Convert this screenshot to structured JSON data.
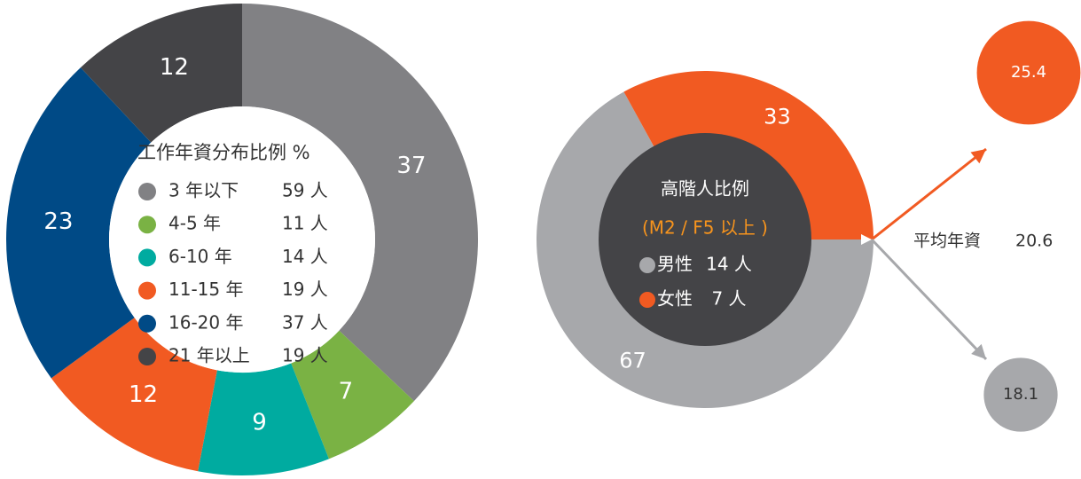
{
  "chart_data": [
    {
      "type": "donut",
      "title": "工作年資分布比例 %",
      "categories": [
        "3 年以下",
        "4-5 年",
        "6-10 年",
        "11-15 年",
        "16-20 年",
        "21 年以上"
      ],
      "counts": [
        "59 人",
        "11 人",
        "14 人",
        "19 人",
        "37 人",
        "19 人"
      ],
      "values": [
        37,
        7,
        9,
        12,
        23,
        12
      ],
      "colors": [
        "#818184",
        "#7ab244",
        "#00aba0",
        "#f15a22",
        "#004a86",
        "#444447"
      ]
    },
    {
      "type": "donut",
      "title": "高階人比例",
      "subtitle": "(M2 / F5 以上 )",
      "categories": [
        "男性",
        "女性"
      ],
      "counts": [
        "14 人",
        "7 人"
      ],
      "values": [
        67,
        33
      ],
      "colors": [
        "#a7a8ab",
        "#f15a22"
      ]
    },
    {
      "type": "bubble_pair",
      "title": "平均年資",
      "overall": 20.6,
      "values": [
        25.4,
        18.1
      ],
      "colors": [
        "#f15a22",
        "#a7a8ab"
      ]
    }
  ]
}
